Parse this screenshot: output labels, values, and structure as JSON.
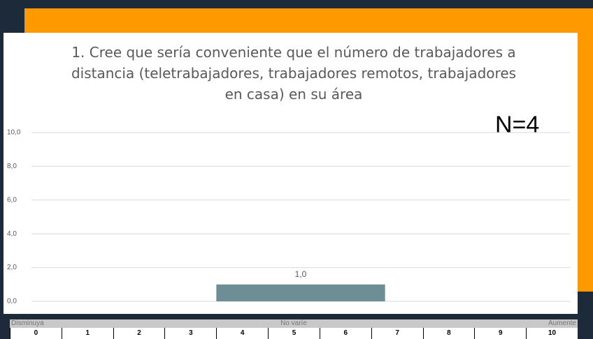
{
  "chart_data": {
    "type": "bar",
    "title": "1. Cree que sería conveniente que el número de trabajadores a distancia (teletrabajadores, trabajadores remotos, trabajadores en casa) en su área",
    "annotation": "N=4",
    "categories": [
      null,
      null,
      null
    ],
    "values": [
      null,
      1,
      null
    ],
    "value_labels": [
      null,
      "1,0",
      null
    ],
    "color": "#6e8e96",
    "ylim": [
      0,
      10
    ],
    "yticks": [
      {
        "value": 0,
        "label": "0,0"
      },
      {
        "value": 2,
        "label": "2,0"
      },
      {
        "value": 4,
        "label": "4,0"
      },
      {
        "value": 6,
        "label": "6,0"
      },
      {
        "value": 8,
        "label": "8,0"
      },
      {
        "value": 10,
        "label": "10,0"
      }
    ],
    "grid": true
  },
  "scale_table": {
    "header": [
      "Disminuya",
      "No varíe",
      "Aumente"
    ],
    "numbers": [
      "0",
      "1",
      "2",
      "3",
      "4",
      "5",
      "6",
      "7",
      "8",
      "9",
      "10"
    ]
  }
}
